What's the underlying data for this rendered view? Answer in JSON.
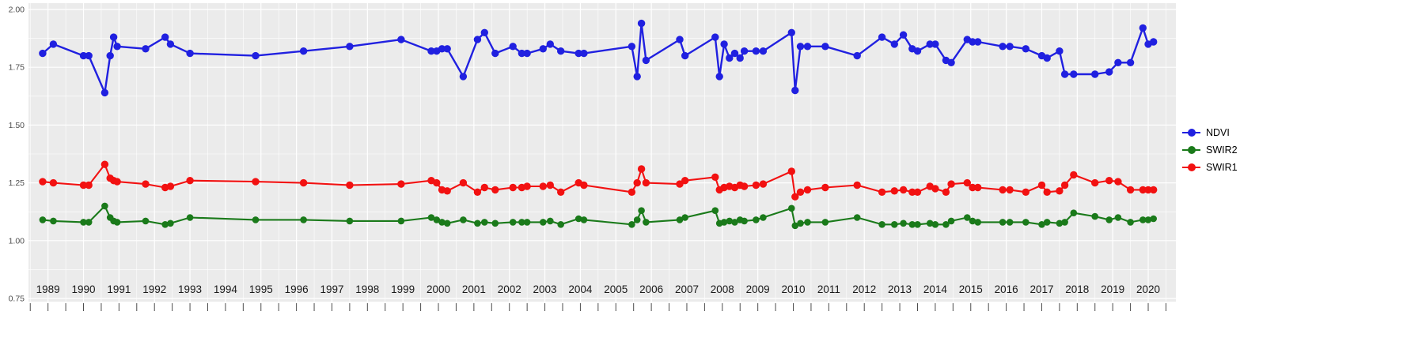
{
  "figure": {
    "background": "#FFFFFF",
    "panel_background": "#EBEBEB",
    "grid_major_color": "#FFFFFF",
    "grid_minor_color": "#FFFFFF",
    "axis_text_color": "#4D4D4D",
    "x_label_color": "#1A1A1A",
    "tick_color": "#4D4D4D"
  },
  "legend": {
    "position": "right",
    "items": [
      {
        "label": "NDVI",
        "color": "#2020E0"
      },
      {
        "label": "SWIR2",
        "color": "#1A7A1A"
      },
      {
        "label": "SWIR1",
        "color": "#F21111"
      }
    ]
  },
  "chart_data": {
    "type": "line",
    "title": "",
    "xlabel": "",
    "ylabel": "",
    "grid": true,
    "legend_position": "right",
    "x_domain": [
      1988.45,
      2020.78
    ],
    "ylim": [
      0.75,
      2.0
    ],
    "y_tick_values": [
      2.0,
      1.75,
      1.5,
      1.25,
      1.0,
      0.75
    ],
    "y_tick_labels": [
      "2.00",
      "1.75",
      "1.50",
      "1.25",
      "1.00",
      "0.75"
    ],
    "x_tick_years": [
      1989,
      1990,
      1991,
      1992,
      1993,
      1994,
      1995,
      1996,
      1997,
      1998,
      1999,
      2000,
      2001,
      2002,
      2003,
      2004,
      2005,
      2006,
      2007,
      2008,
      2009,
      2010,
      2011,
      2012,
      2013,
      2014,
      2015,
      2016,
      2017,
      2018,
      2019,
      2020
    ],
    "x": [
      1988.85,
      1989.15,
      1990.0,
      1990.15,
      1990.6,
      1990.75,
      1990.85,
      1990.95,
      1991.75,
      1992.3,
      1992.45,
      1993.0,
      1994.85,
      1996.2,
      1997.5,
      1998.95,
      1999.8,
      1999.95,
      2000.1,
      2000.25,
      2000.7,
      2001.1,
      2001.3,
      2001.6,
      2002.1,
      2002.35,
      2002.5,
      2002.95,
      2003.15,
      2003.45,
      2003.95,
      2004.1,
      2005.45,
      2005.6,
      2005.72,
      2005.85,
      2006.8,
      2006.95,
      2007.8,
      2007.92,
      2008.05,
      2008.2,
      2008.35,
      2008.5,
      2008.62,
      2008.95,
      2009.15,
      2009.95,
      2010.05,
      2010.2,
      2010.4,
      2010.9,
      2011.8,
      2012.5,
      2012.85,
      2013.1,
      2013.35,
      2013.5,
      2013.85,
      2014.0,
      2014.3,
      2014.45,
      2014.9,
      2015.05,
      2015.2,
      2015.9,
      2016.1,
      2016.55,
      2017.0,
      2017.15,
      2017.5,
      2017.65,
      2017.9,
      2018.5,
      2018.9,
      2019.15,
      2019.5,
      2019.85,
      2020.0,
      2020.15
    ],
    "series": [
      {
        "name": "NDVI",
        "color": "#2020E0",
        "values": [
          1.81,
          1.85,
          1.8,
          1.8,
          1.64,
          1.8,
          1.88,
          1.84,
          1.83,
          1.88,
          1.85,
          1.81,
          1.8,
          1.82,
          1.84,
          1.87,
          1.82,
          1.82,
          1.83,
          1.83,
          1.71,
          1.87,
          1.9,
          1.81,
          1.84,
          1.81,
          1.81,
          1.83,
          1.85,
          1.82,
          1.81,
          1.81,
          1.84,
          1.71,
          1.94,
          1.78,
          1.87,
          1.8,
          1.88,
          1.71,
          1.85,
          1.79,
          1.81,
          1.79,
          1.82,
          1.82,
          1.82,
          1.9,
          1.65,
          1.84,
          1.84,
          1.84,
          1.8,
          1.88,
          1.85,
          1.89,
          1.83,
          1.82,
          1.85,
          1.85,
          1.78,
          1.77,
          1.87,
          1.86,
          1.86,
          1.84,
          1.84,
          1.83,
          1.8,
          1.79,
          1.82,
          1.72,
          1.72,
          1.72,
          1.73,
          1.77,
          1.77,
          1.92,
          1.85,
          1.86
        ]
      },
      {
        "name": "SWIR2",
        "color": "#1A7A1A",
        "values": [
          1.09,
          1.085,
          1.08,
          1.08,
          1.15,
          1.1,
          1.085,
          1.08,
          1.085,
          1.07,
          1.075,
          1.1,
          1.09,
          1.09,
          1.085,
          1.085,
          1.1,
          1.09,
          1.08,
          1.075,
          1.09,
          1.075,
          1.08,
          1.075,
          1.08,
          1.08,
          1.08,
          1.08,
          1.085,
          1.07,
          1.095,
          1.09,
          1.07,
          1.09,
          1.13,
          1.08,
          1.09,
          1.1,
          1.13,
          1.075,
          1.08,
          1.085,
          1.08,
          1.09,
          1.085,
          1.09,
          1.1,
          1.14,
          1.065,
          1.075,
          1.08,
          1.08,
          1.1,
          1.07,
          1.07,
          1.075,
          1.07,
          1.07,
          1.075,
          1.07,
          1.07,
          1.085,
          1.1,
          1.085,
          1.08,
          1.08,
          1.08,
          1.08,
          1.07,
          1.08,
          1.075,
          1.08,
          1.12,
          1.105,
          1.09,
          1.1,
          1.08,
          1.09,
          1.09,
          1.095
        ]
      },
      {
        "name": "SWIR1",
        "color": "#F21111",
        "values": [
          1.255,
          1.25,
          1.24,
          1.24,
          1.33,
          1.27,
          1.26,
          1.255,
          1.245,
          1.23,
          1.235,
          1.26,
          1.255,
          1.25,
          1.24,
          1.245,
          1.26,
          1.25,
          1.22,
          1.215,
          1.25,
          1.21,
          1.23,
          1.22,
          1.23,
          1.23,
          1.235,
          1.235,
          1.24,
          1.21,
          1.25,
          1.24,
          1.21,
          1.25,
          1.31,
          1.25,
          1.245,
          1.26,
          1.275,
          1.22,
          1.23,
          1.235,
          1.23,
          1.24,
          1.235,
          1.24,
          1.245,
          1.3,
          1.19,
          1.21,
          1.22,
          1.23,
          1.24,
          1.21,
          1.215,
          1.22,
          1.21,
          1.21,
          1.235,
          1.225,
          1.21,
          1.245,
          1.25,
          1.23,
          1.23,
          1.22,
          1.22,
          1.21,
          1.24,
          1.21,
          1.215,
          1.24,
          1.285,
          1.25,
          1.26,
          1.255,
          1.22,
          1.22,
          1.22,
          1.22
        ]
      }
    ]
  }
}
